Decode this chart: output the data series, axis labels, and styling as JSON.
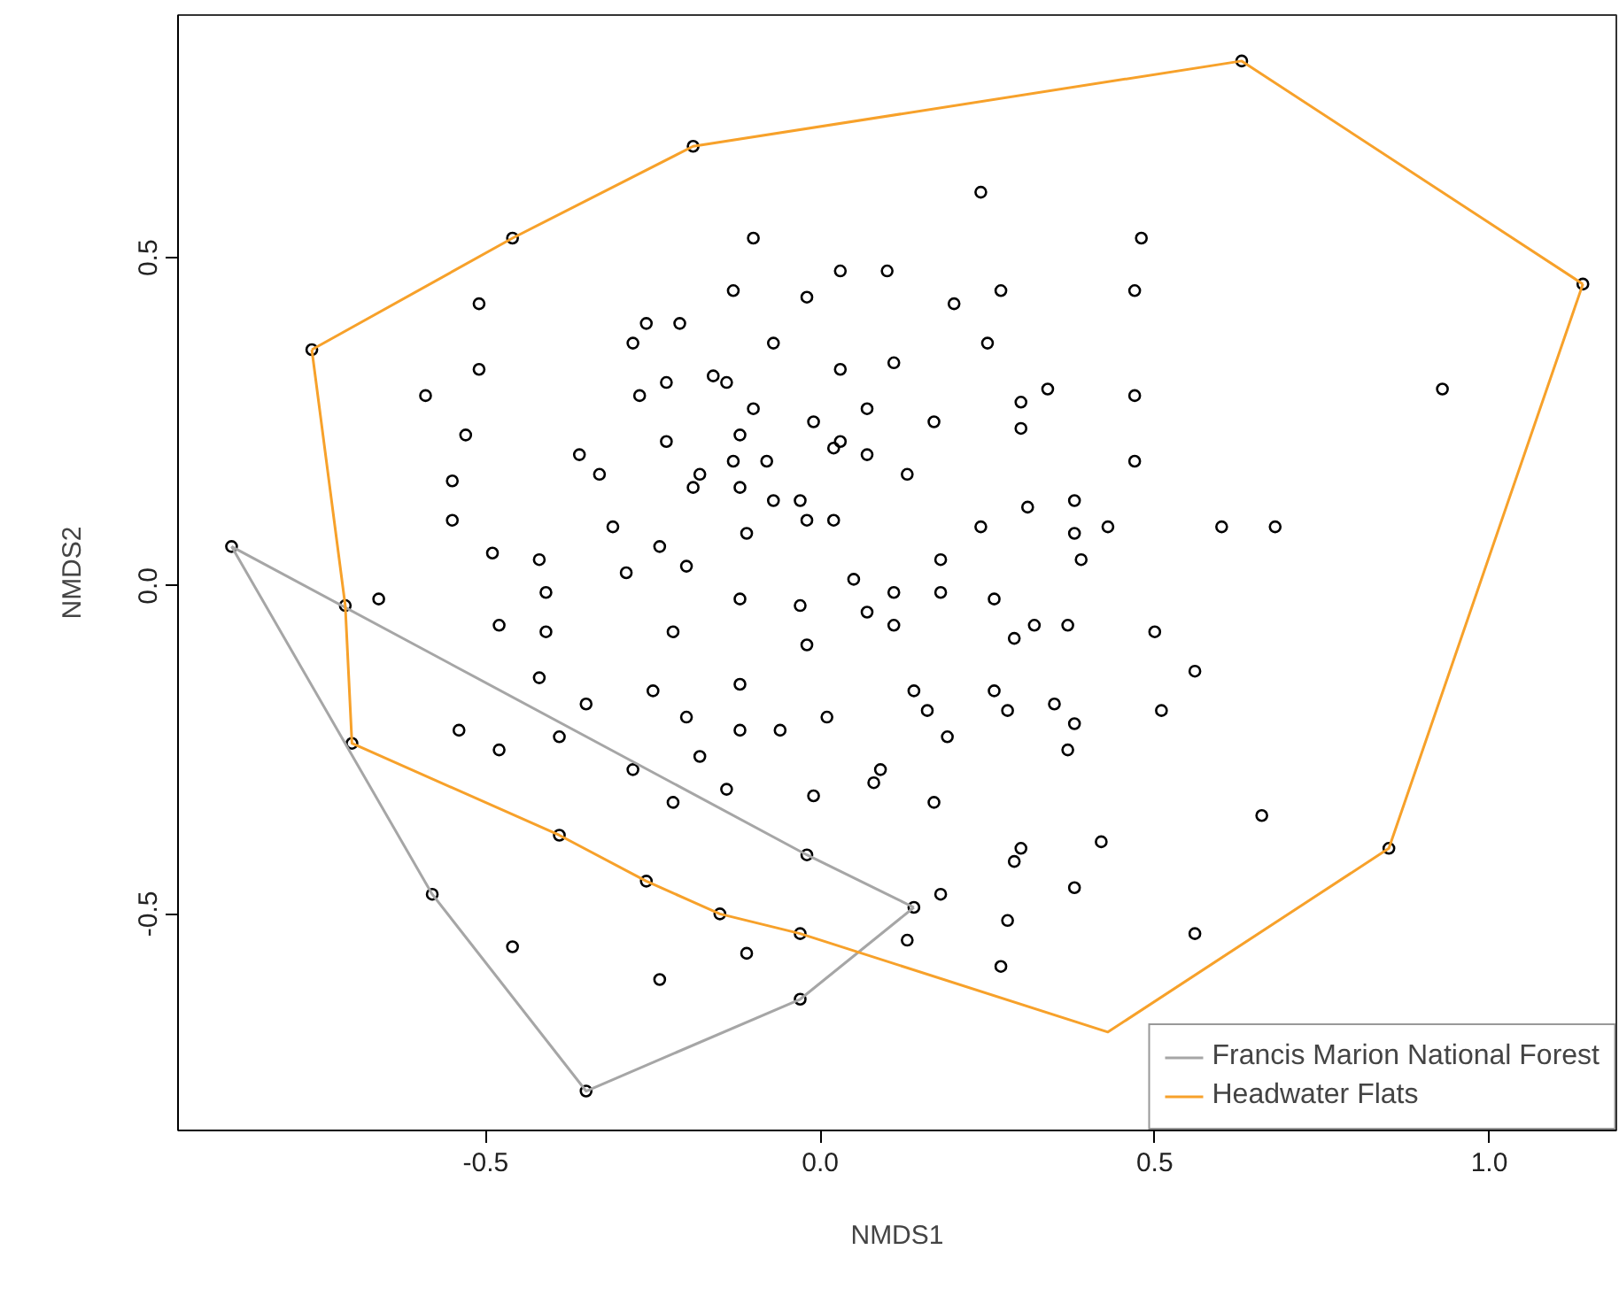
{
  "chart_data": {
    "type": "scatter",
    "xlabel": "NMDS1",
    "ylabel": "NMDS2",
    "xlim": [
      -0.96,
      1.19
    ],
    "ylim": [
      -0.83,
      0.87
    ],
    "xticks": [
      {
        "value": -0.5,
        "label": "-0.5"
      },
      {
        "value": 0,
        "label": "0.0"
      },
      {
        "value": 0.5,
        "label": "0.5"
      },
      {
        "value": 1,
        "label": "1.0"
      }
    ],
    "yticks": [
      {
        "value": -0.5,
        "label": "-0.5"
      },
      {
        "value": 0,
        "label": "0.0"
      },
      {
        "value": 0.5,
        "label": "0.5"
      }
    ],
    "grid": false,
    "legend": "bottom right",
    "series": [
      {
        "type": "scatter",
        "marker": "circle",
        "color": "#000000",
        "x": [
          -0.19,
          0.63,
          -0.46,
          -0.76,
          1.14,
          -0.88,
          0.85,
          -0.71,
          -0.7,
          -0.39,
          -0.26,
          -0.15,
          -0.03,
          -0.58,
          -0.35,
          -0.03,
          0.14,
          -0.02,
          0.24,
          -0.1,
          0.48,
          0.03,
          0.1,
          -0.13,
          -0.02,
          0.2,
          0.27,
          0.47,
          -0.21,
          -0.07,
          0.25,
          0.03,
          0.11,
          -0.23,
          -0.16,
          -0.14,
          0.34,
          0.3,
          0.47,
          -0.1,
          0.07,
          -0.23,
          -0.12,
          -0.01,
          0.03,
          0.02,
          0.17,
          0.3,
          0.07,
          -0.08,
          -0.13,
          -0.18,
          -0.19,
          -0.12,
          0.13,
          0.47,
          -0.07,
          -0.03,
          -0.02,
          0.02,
          -0.11,
          0.24,
          0.31,
          0.38,
          0.38,
          0.43,
          0.39,
          -0.24,
          -0.2,
          0.18,
          0.05,
          0.18,
          -0.51,
          -0.51,
          -0.59,
          -0.53,
          -0.55,
          -0.55,
          -0.49,
          -0.42,
          -0.36,
          -0.33,
          -0.31,
          -0.29,
          -0.26,
          -0.28,
          -0.27,
          0.93,
          0.6,
          0.68,
          -0.66,
          -0.41,
          -0.48,
          -0.41,
          -0.22,
          -0.42,
          -0.25,
          -0.35,
          -0.54,
          -0.48,
          -0.39,
          -0.28,
          -0.22,
          -0.46,
          -0.24,
          -0.12,
          -0.03,
          0.11,
          0.07,
          0.11,
          0.26,
          0.29,
          0.32,
          0.37,
          0.5,
          -0.02,
          -0.12,
          0.14,
          0.26,
          0.35,
          -0.2,
          -0.12,
          -0.06,
          0.01,
          0.16,
          0.28,
          0.38,
          0.19,
          0.37,
          -0.18,
          -0.14,
          -0.01,
          0.08,
          0.09,
          0.17,
          0.42,
          0.3,
          0.29,
          0.38,
          0.18,
          0.28,
          0.27,
          0.13,
          -0.11,
          0.56,
          0.51,
          0.66,
          0.56
        ],
        "values": [
          0.67,
          0.8,
          0.53,
          0.36,
          0.46,
          0.06,
          -0.4,
          -0.03,
          -0.24,
          -0.38,
          -0.45,
          -0.5,
          -0.53,
          -0.47,
          -0.77,
          -0.63,
          -0.49,
          -0.41,
          0.6,
          0.53,
          0.53,
          0.48,
          0.48,
          0.45,
          0.44,
          0.43,
          0.45,
          0.45,
          0.4,
          0.37,
          0.37,
          0.33,
          0.34,
          0.31,
          0.32,
          0.31,
          0.3,
          0.28,
          0.29,
          0.27,
          0.27,
          0.22,
          0.23,
          0.25,
          0.22,
          0.21,
          0.25,
          0.24,
          0.2,
          0.19,
          0.19,
          0.17,
          0.15,
          0.15,
          0.17,
          0.19,
          0.13,
          0.13,
          0.1,
          0.1,
          0.08,
          0.09,
          0.12,
          0.13,
          0.08,
          0.09,
          0.04,
          0.06,
          0.03,
          0.04,
          0.01,
          -0.01,
          0.43,
          0.33,
          0.29,
          0.23,
          0.16,
          0.1,
          0.05,
          0.04,
          0.2,
          0.17,
          0.09,
          0.02,
          0.4,
          0.37,
          0.29,
          0.3,
          0.09,
          0.09,
          -0.02,
          -0.01,
          -0.06,
          -0.07,
          -0.07,
          -0.14,
          -0.16,
          -0.18,
          -0.22,
          -0.25,
          -0.23,
          -0.28,
          -0.33,
          -0.55,
          -0.6,
          -0.02,
          -0.03,
          -0.01,
          -0.04,
          -0.06,
          -0.02,
          -0.08,
          -0.06,
          -0.06,
          -0.07,
          -0.09,
          -0.15,
          -0.16,
          -0.16,
          -0.18,
          -0.2,
          -0.22,
          -0.22,
          -0.2,
          -0.19,
          -0.19,
          -0.21,
          -0.23,
          -0.25,
          -0.26,
          -0.31,
          -0.32,
          -0.3,
          -0.28,
          -0.33,
          -0.39,
          -0.4,
          -0.42,
          -0.46,
          -0.47,
          -0.51,
          -0.58,
          -0.54,
          -0.56,
          -0.13,
          -0.19,
          -0.35,
          -0.53
        ]
      },
      {
        "type": "line",
        "name": "Francis Marion National Forest",
        "color": "#a6a6a6",
        "x": [
          -0.88,
          -0.58,
          -0.35,
          -0.03,
          0.14
        ],
        "values": [
          0.06,
          -0.47,
          -0.77,
          -0.63,
          -0.49
        ]
      },
      {
        "type": "line",
        "color": "#a6a6a6",
        "x": [
          -0.88,
          -0.02,
          0.14
        ],
        "values": [
          0.06,
          -0.41,
          -0.49
        ]
      },
      {
        "type": "line",
        "name": "Headwater Flats",
        "color": "#f7a12a",
        "x": [
          -0.76,
          -0.46,
          -0.19,
          0.63,
          1.14
        ],
        "values": [
          0.36,
          0.53,
          0.67,
          0.8,
          0.46
        ]
      },
      {
        "type": "line",
        "color": "#f7a12a",
        "x": [
          -0.76,
          -0.71,
          -0.7,
          -0.39,
          -0.26,
          -0.15,
          -0.03,
          0.43,
          0.85,
          1.14
        ],
        "values": [
          0.36,
          -0.03,
          -0.24,
          -0.38,
          -0.45,
          -0.5,
          -0.53,
          -0.68,
          -0.4,
          0.46
        ]
      }
    ]
  }
}
